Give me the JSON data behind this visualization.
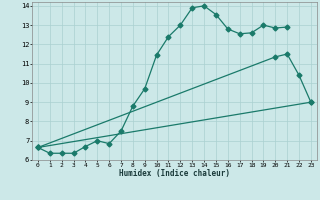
{
  "xlabel": "Humidex (Indice chaleur)",
  "ylabel": "",
  "bg_color": "#cce8e8",
  "grid_color": "#aad0d0",
  "line_color": "#1a7a6a",
  "xlim": [
    -0.5,
    23.5
  ],
  "ylim": [
    6,
    14.2
  ],
  "xticks": [
    0,
    1,
    2,
    3,
    4,
    5,
    6,
    7,
    8,
    9,
    10,
    11,
    12,
    13,
    14,
    15,
    16,
    17,
    18,
    19,
    20,
    21,
    22,
    23
  ],
  "yticks": [
    6,
    7,
    8,
    9,
    10,
    11,
    12,
    13,
    14
  ],
  "curve1_x": [
    0,
    1,
    2,
    3,
    4,
    5,
    6,
    7,
    8,
    9,
    10,
    11,
    12,
    13,
    14,
    15,
    16,
    17,
    18,
    19,
    20,
    21
  ],
  "curve1_y": [
    6.65,
    6.35,
    6.35,
    6.35,
    6.7,
    7.0,
    6.85,
    7.5,
    8.8,
    9.7,
    11.45,
    12.4,
    13.0,
    13.9,
    14.0,
    13.55,
    12.8,
    12.55,
    12.6,
    13.0,
    12.85,
    12.9
  ],
  "curve2_x": [
    0,
    20,
    21,
    22,
    23
  ],
  "curve2_y": [
    6.65,
    11.35,
    11.5,
    10.4,
    9.0
  ],
  "curve3_x": [
    0,
    23
  ],
  "curve3_y": [
    6.65,
    9.0
  ]
}
